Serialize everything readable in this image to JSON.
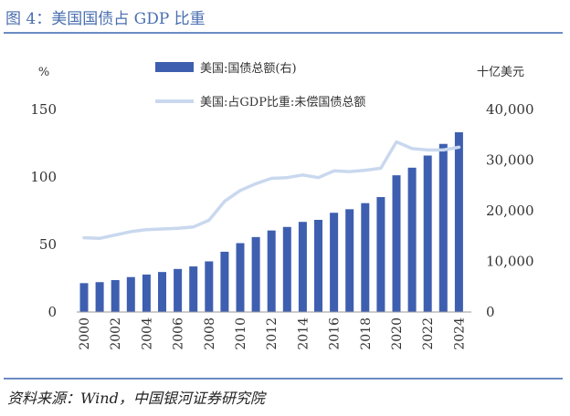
{
  "title": "图 4：美国国债占 GDP 比重",
  "source": "资料来源：Wind，中国银河证券研究院",
  "chart_data": {
    "type": "bar+line",
    "left_axis": {
      "unit": "%",
      "ylim": [
        0,
        150
      ],
      "ticks": [
        "0",
        "50",
        "100",
        "150"
      ],
      "tick_values": [
        0,
        50,
        100,
        150
      ]
    },
    "right_axis": {
      "unit": "十亿美元",
      "ylim": [
        0,
        40000
      ],
      "ticks": [
        "0",
        "10,000",
        "20,000",
        "30,000",
        "40,000"
      ],
      "tick_values": [
        0,
        10000,
        20000,
        30000,
        40000
      ]
    },
    "x": [
      2000,
      2001,
      2002,
      2003,
      2004,
      2005,
      2006,
      2007,
      2008,
      2009,
      2010,
      2011,
      2012,
      2013,
      2014,
      2015,
      2016,
      2017,
      2018,
      2019,
      2020,
      2021,
      2022,
      2023,
      2024
    ],
    "x_tick_labels": [
      "2000",
      "2002",
      "2004",
      "2006",
      "2008",
      "2010",
      "2012",
      "2014",
      "2016",
      "2018",
      "2020",
      "2022",
      "2024"
    ],
    "series": [
      {
        "name": "美国:国债总额(右)",
        "type": "bar",
        "axis": "right",
        "color": "#3e5fb0",
        "values": [
          5700,
          5900,
          6300,
          6900,
          7400,
          7900,
          8500,
          9000,
          10000,
          11900,
          13600,
          14800,
          16100,
          16800,
          17800,
          18200,
          19600,
          20300,
          21500,
          22700,
          27000,
          28500,
          30900,
          33200,
          35500
        ]
      },
      {
        "name": "美国:占GDP比重:未偿国债总额",
        "type": "line",
        "axis": "left",
        "color": "#c9d8ee",
        "values": [
          55,
          54.5,
          57,
          59.5,
          61,
          61.5,
          62,
          63,
          68,
          82,
          90,
          95,
          99,
          99.5,
          101.5,
          99.5,
          104.5,
          104,
          105,
          106.5,
          126,
          121,
          120,
          120,
          122
        ]
      }
    ],
    "legend_position": "top-center",
    "grid": false
  }
}
